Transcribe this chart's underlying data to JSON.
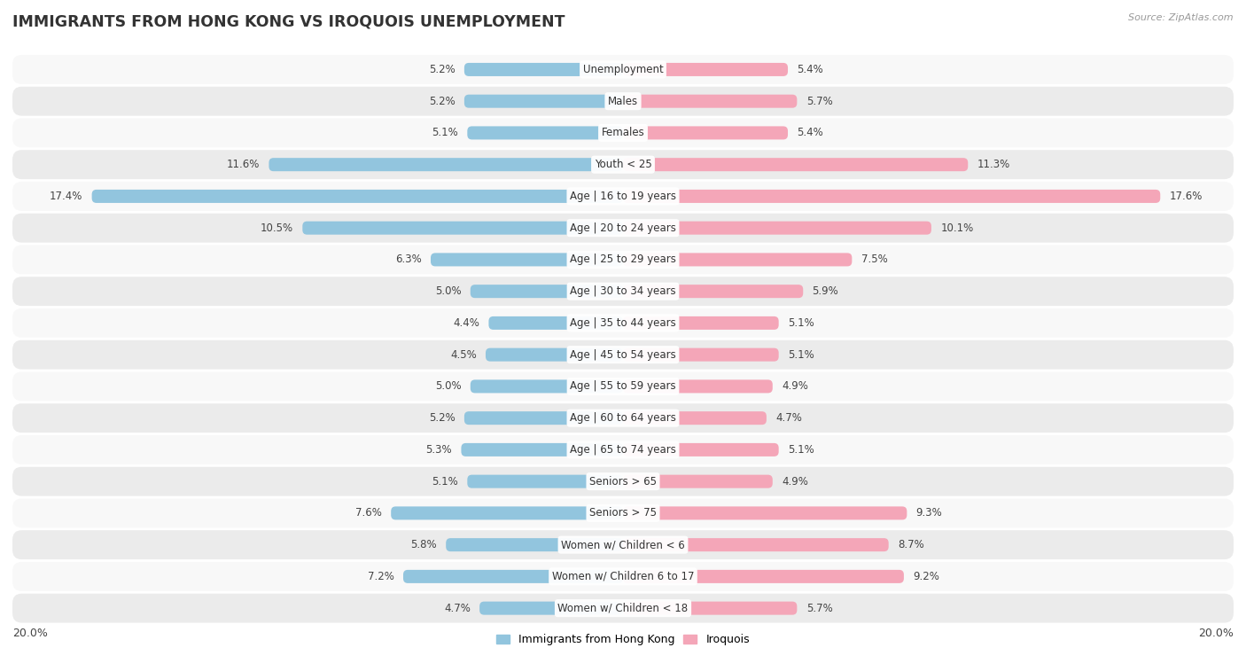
{
  "title": "IMMIGRANTS FROM HONG KONG VS IROQUOIS UNEMPLOYMENT",
  "source": "Source: ZipAtlas.com",
  "categories": [
    "Unemployment",
    "Males",
    "Females",
    "Youth < 25",
    "Age | 16 to 19 years",
    "Age | 20 to 24 years",
    "Age | 25 to 29 years",
    "Age | 30 to 34 years",
    "Age | 35 to 44 years",
    "Age | 45 to 54 years",
    "Age | 55 to 59 years",
    "Age | 60 to 64 years",
    "Age | 65 to 74 years",
    "Seniors > 65",
    "Seniors > 75",
    "Women w/ Children < 6",
    "Women w/ Children 6 to 17",
    "Women w/ Children < 18"
  ],
  "hk_values": [
    5.2,
    5.2,
    5.1,
    11.6,
    17.4,
    10.5,
    6.3,
    5.0,
    4.4,
    4.5,
    5.0,
    5.2,
    5.3,
    5.1,
    7.6,
    5.8,
    7.2,
    4.7
  ],
  "iro_values": [
    5.4,
    5.7,
    5.4,
    11.3,
    17.6,
    10.1,
    7.5,
    5.9,
    5.1,
    5.1,
    4.9,
    4.7,
    5.1,
    4.9,
    9.3,
    8.7,
    9.2,
    5.7
  ],
  "hk_color": "#92c5de",
  "iro_color": "#f4a6b8",
  "hk_label": "Immigrants from Hong Kong",
  "iro_label": "Iroquois",
  "xlim": 20.0,
  "bar_height": 0.42,
  "bg_color_odd": "#ebebeb",
  "bg_color_even": "#f8f8f8",
  "value_fontsize": 8.5,
  "category_fontsize": 8.5,
  "title_fontsize": 12.5
}
